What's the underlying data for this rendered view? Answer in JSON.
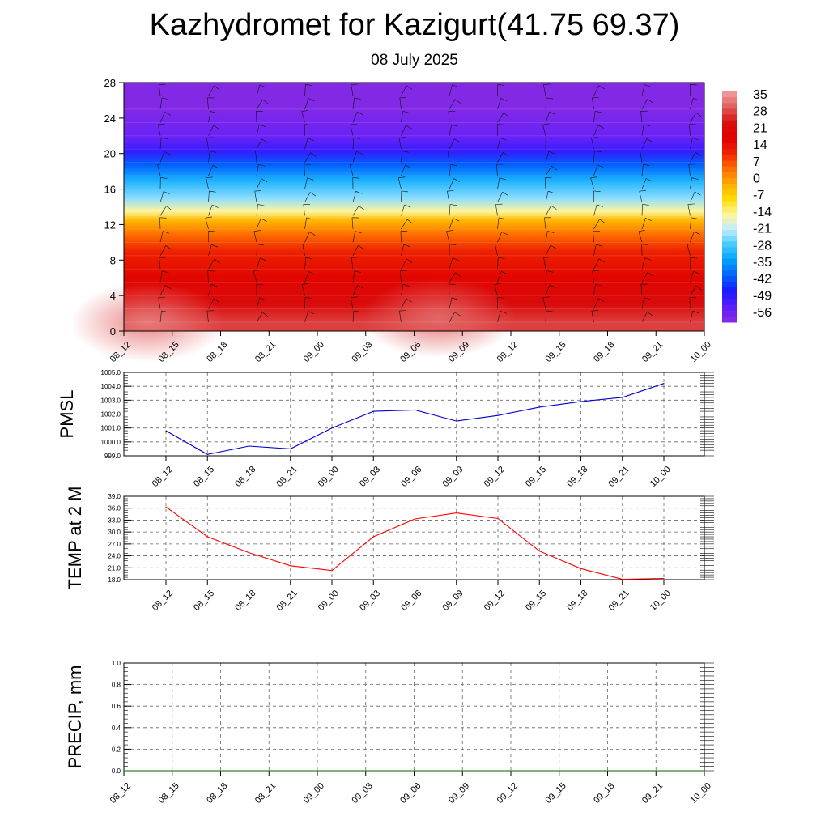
{
  "header": {
    "title": "Kazhydromet for Kazigurt(41.75 69.37)",
    "subtitle": "08 July 2025"
  },
  "colors": {
    "pmsl_line": "#0000cc",
    "temp_line": "#ff0000",
    "precip_line": "#006400",
    "colorbar": [
      "#8a2be2",
      "#5a1fff",
      "#1a1aff",
      "#0060ff",
      "#00a0ff",
      "#40c8ff",
      "#c0ecff",
      "#fff59d",
      "#ffdd00",
      "#ffaa00",
      "#ff6a00",
      "#ee2200",
      "#e00000",
      "#d81010",
      "#e06060",
      "#f0a0a0"
    ]
  },
  "chart_data": [
    {
      "type": "heatmap",
      "name": "temperature-profile-with-wind-barbs",
      "xlabel": "",
      "ylabel": "",
      "x_tick_labels": [
        "08_12",
        "08_15",
        "08_18",
        "08_21",
        "09_00",
        "09_03",
        "09_06",
        "09_09",
        "09_12",
        "09_15",
        "09_18",
        "09_21",
        "10_00"
      ],
      "y_ticks": [
        0,
        4,
        8,
        12,
        16,
        20,
        24,
        28
      ],
      "ylim": [
        0,
        28
      ],
      "colorbar_labels": [
        "35",
        "28",
        "21",
        "14",
        "7",
        "0",
        "-7",
        "-14",
        "-21",
        "-28",
        "-35",
        "-42",
        "-49",
        "-56"
      ],
      "colorbar_range": [
        -63,
        42
      ],
      "layers": [
        {
          "y_from": 0,
          "y_to": 2,
          "value": 32
        },
        {
          "y_from": 2,
          "y_to": 4,
          "value": 26
        },
        {
          "y_from": 4,
          "y_to": 8,
          "value": 20
        },
        {
          "y_from": 8,
          "y_to": 10,
          "value": 14
        },
        {
          "y_from": 10,
          "y_to": 12,
          "value": 6
        },
        {
          "y_from": 12,
          "y_to": 13,
          "value": -2
        },
        {
          "y_from": 13,
          "y_to": 14,
          "value": -14
        },
        {
          "y_from": 14,
          "y_to": 16,
          "value": -24
        },
        {
          "y_from": 16,
          "y_to": 18,
          "value": -32
        },
        {
          "y_from": 18,
          "y_to": 19.5,
          "value": -42
        },
        {
          "y_from": 19.5,
          "y_to": 21,
          "value": -52
        },
        {
          "y_from": 21,
          "y_to": 22.5,
          "value": -58
        },
        {
          "y_from": 22.5,
          "y_to": 28,
          "value": -62
        }
      ],
      "warm_spots": [
        {
          "x_index": 0.5,
          "y": 1,
          "value": 38
        },
        {
          "x_index": 6.5,
          "y": 1.5,
          "value": 36
        }
      ]
    },
    {
      "type": "line",
      "ylabel": "PMSL",
      "x_tick_labels": [
        "08_12",
        "08_15",
        "08_18",
        "08_21",
        "09_00",
        "09_03",
        "09_06",
        "09_09",
        "09_12",
        "09_15",
        "09_18",
        "09_21",
        "10_00"
      ],
      "y_ticks": [
        "999.0",
        "1000.0",
        "1001.0",
        "1002.0",
        "1003.0",
        "1004.0",
        "1005.0"
      ],
      "ylim": [
        999,
        1005
      ],
      "grid": true,
      "series": [
        {
          "values": [
            1000.8,
            999.1,
            999.7,
            999.5,
            1001.0,
            1002.2,
            1002.3,
            1001.5,
            1001.9,
            1002.5,
            1002.9,
            1003.2,
            1004.2
          ]
        }
      ]
    },
    {
      "type": "line",
      "ylabel": "TEMP at 2 M",
      "x_tick_labels": [
        "08_12",
        "08_15",
        "08_18",
        "08_21",
        "09_00",
        "09_03",
        "09_06",
        "09_09",
        "09_12",
        "09_15",
        "09_18",
        "09_21",
        "10_00"
      ],
      "y_ticks": [
        "18.0",
        "21.0",
        "24.0",
        "27.0",
        "30.0",
        "33.0",
        "36.0",
        "39.0"
      ],
      "ylim": [
        18,
        39
      ],
      "grid": true,
      "series": [
        {
          "values": [
            36.3,
            28.8,
            24.8,
            21.5,
            20.3,
            28.8,
            33.3,
            34.8,
            33.4,
            25.2,
            20.8,
            18.1,
            18.3
          ]
        }
      ]
    },
    {
      "type": "line",
      "ylabel": "PRECIP, mm",
      "x_tick_labels": [
        "08_12",
        "08_15",
        "08_18",
        "08_21",
        "09_00",
        "09_03",
        "09_06",
        "09_09",
        "09_12",
        "09_15",
        "09_18",
        "09_21",
        "10_00"
      ],
      "y_ticks": [
        "0.0",
        "0.2",
        "0.4",
        "0.6",
        "0.8",
        "1.0"
      ],
      "ylim": [
        0,
        1
      ],
      "grid": true,
      "series": [
        {
          "values": [
            0,
            0,
            0,
            0,
            0,
            0,
            0,
            0,
            0,
            0,
            0,
            0,
            0
          ]
        }
      ]
    }
  ]
}
